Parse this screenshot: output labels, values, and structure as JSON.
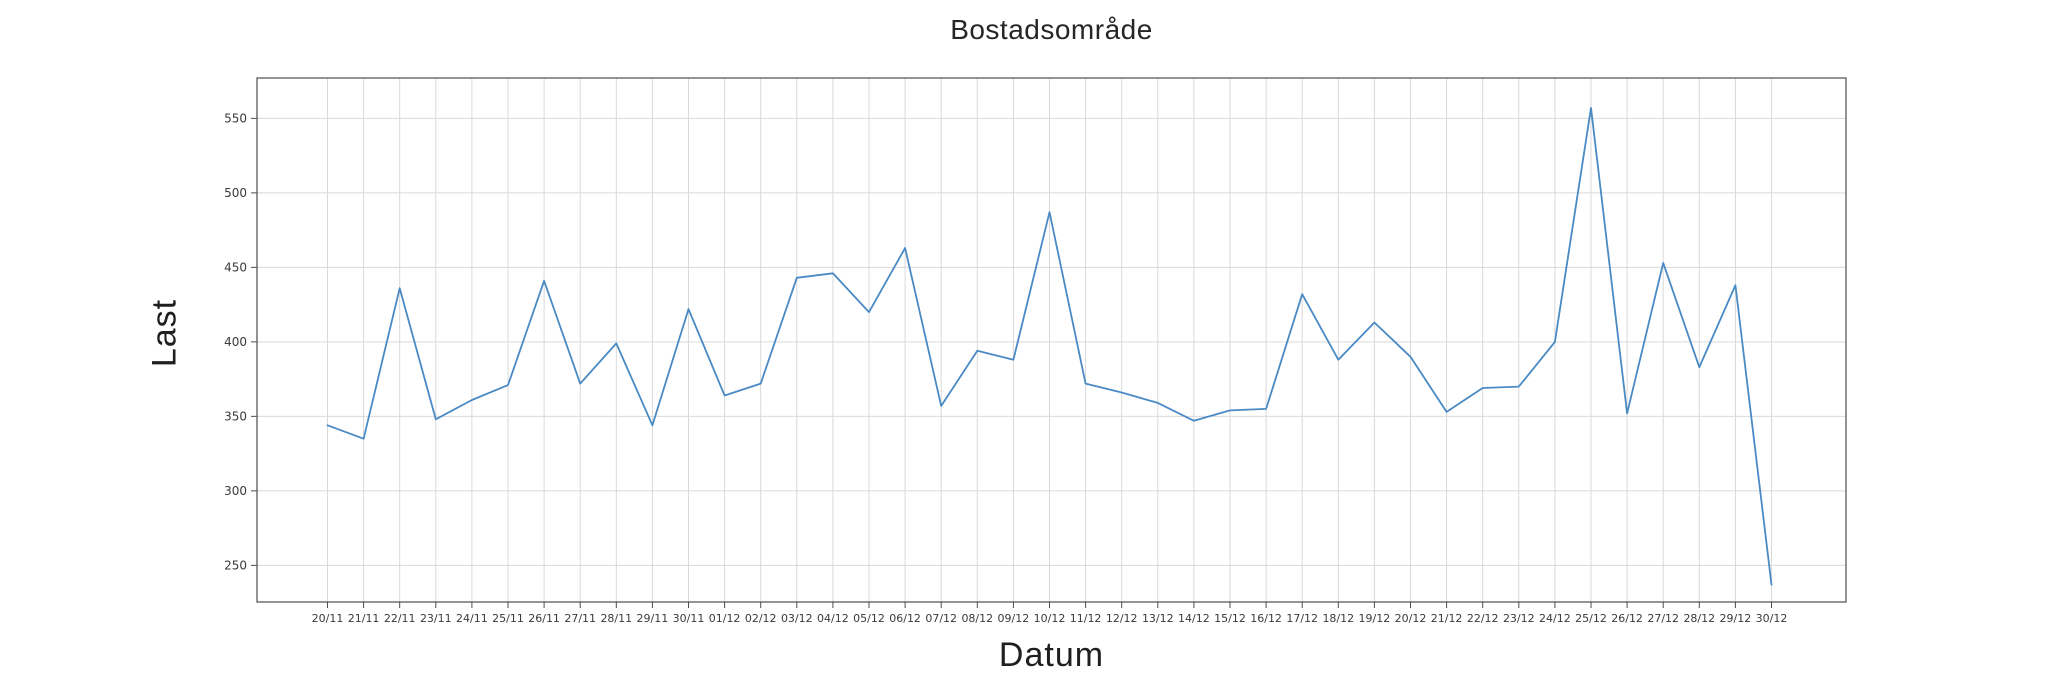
{
  "chart_data": {
    "type": "line",
    "title": "Bostadsområde",
    "xlabel": "Datum",
    "ylabel": "Last",
    "legend": false,
    "grid": true,
    "ylim": [
      225.4,
      577.1
    ],
    "yticks": [
      250,
      300,
      350,
      400,
      450,
      500,
      550
    ],
    "categories": [
      "20/11",
      "21/11",
      "22/11",
      "23/11",
      "24/11",
      "25/11",
      "26/11",
      "27/11",
      "28/11",
      "29/11",
      "30/11",
      "01/12",
      "02/12",
      "03/12",
      "04/12",
      "05/12",
      "06/12",
      "07/12",
      "08/12",
      "09/12",
      "10/12",
      "11/12",
      "12/12",
      "13/12",
      "14/12",
      "15/12",
      "16/12",
      "17/12",
      "18/12",
      "19/12",
      "20/12",
      "21/12",
      "22/12",
      "23/12",
      "24/12",
      "25/12",
      "26/12",
      "27/12",
      "28/12",
      "29/12",
      "30/12"
    ],
    "series": [
      {
        "name": "Last",
        "values": [
          344,
          335,
          436,
          348,
          361,
          371,
          441,
          372,
          399,
          344,
          422,
          364,
          372,
          443,
          446,
          420,
          463,
          357,
          394,
          388,
          487,
          372,
          366,
          359,
          347,
          354,
          355,
          432,
          388,
          413,
          390,
          353,
          369,
          370,
          400,
          557,
          352,
          453,
          383,
          438,
          237
        ]
      }
    ],
    "colors": {
      "line": "#4a8ac4",
      "grid": "#d9d9d9",
      "spine": "#4d4d4d",
      "tick_mark": "#4d4d4d",
      "title_text": "#262626",
      "tick_text": "#3a3a3a",
      "background": "#ffffff"
    }
  }
}
